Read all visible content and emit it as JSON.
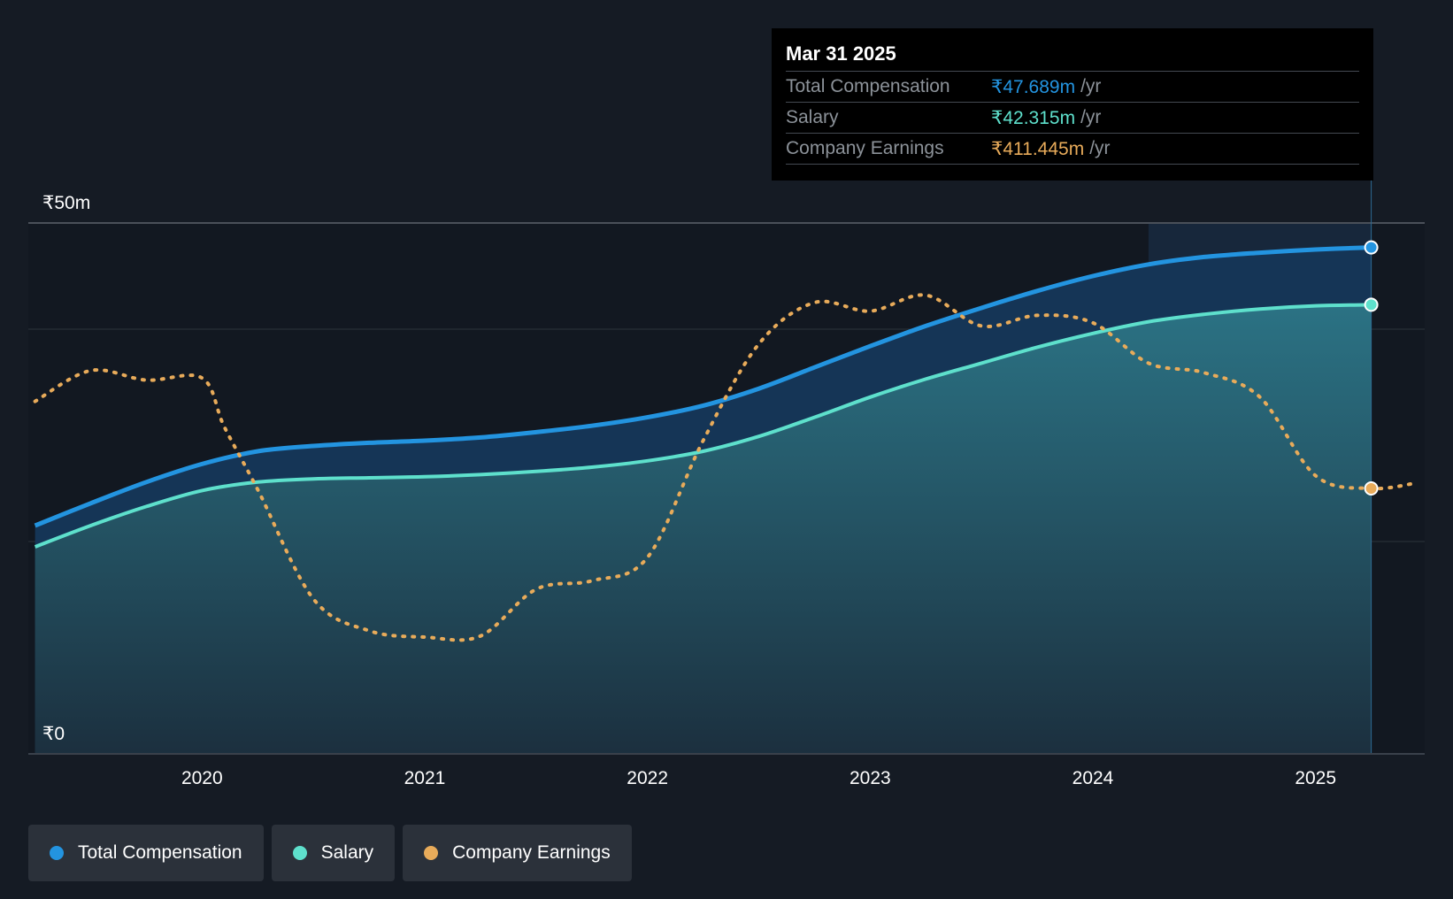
{
  "colors": {
    "background": "#151b24",
    "total_compensation": "#2394e0",
    "salary": "#5ee0cc",
    "company_earnings": "#e8ab5a"
  },
  "tooltip": {
    "date": "Mar 31 2025",
    "rows": [
      {
        "label": "Total Compensation",
        "value": "₹47.689m",
        "unit": "/yr"
      },
      {
        "label": "Salary",
        "value": "₹42.315m",
        "unit": "/yr"
      },
      {
        "label": "Company Earnings",
        "value": "₹411.445m",
        "unit": "/yr"
      }
    ]
  },
  "legend": [
    {
      "label": "Total Compensation"
    },
    {
      "label": "Salary"
    },
    {
      "label": "Company Earnings"
    }
  ],
  "chart_data": {
    "type": "area",
    "title": "",
    "xlabel": "",
    "ylabel": "",
    "ylim": [
      0,
      50
    ],
    "xlim": [
      2019.22,
      2025.49
    ],
    "y_tick_labels": [
      {
        "value": 50,
        "label": "₹50m"
      },
      {
        "value": 0,
        "label": "₹0"
      }
    ],
    "gridlines_y": [
      50,
      40,
      20
    ],
    "x_ticks": [
      2020,
      2021,
      2022,
      2023,
      2024,
      2025
    ],
    "highlight_from": 2024.25,
    "series": [
      {
        "name": "Total Compensation",
        "key": "total_compensation",
        "x": [
          2019.25,
          2019.5,
          2019.75,
          2020.0,
          2020.25,
          2020.5,
          2020.75,
          2021.0,
          2021.25,
          2021.5,
          2021.75,
          2022.0,
          2022.25,
          2022.5,
          2022.75,
          2023.0,
          2023.25,
          2023.5,
          2023.75,
          2024.0,
          2024.25,
          2024.5,
          2024.75,
          2025.0,
          2025.25
        ],
        "values": [
          21.5,
          23.6,
          25.6,
          27.3,
          28.5,
          29.0,
          29.3,
          29.5,
          29.8,
          30.3,
          30.9,
          31.7,
          32.8,
          34.4,
          36.4,
          38.4,
          40.3,
          42.0,
          43.6,
          45.0,
          46.1,
          46.8,
          47.2,
          47.5,
          47.7
        ]
      },
      {
        "name": "Salary",
        "key": "salary",
        "x": [
          2019.25,
          2019.5,
          2019.75,
          2020.0,
          2020.25,
          2020.5,
          2020.75,
          2021.0,
          2021.25,
          2021.5,
          2021.75,
          2022.0,
          2022.25,
          2022.5,
          2022.75,
          2023.0,
          2023.25,
          2023.5,
          2023.75,
          2024.0,
          2024.25,
          2024.5,
          2024.75,
          2025.0,
          2025.25
        ],
        "values": [
          19.5,
          21.5,
          23.3,
          24.8,
          25.6,
          25.9,
          26.0,
          26.1,
          26.3,
          26.6,
          27.0,
          27.6,
          28.5,
          29.9,
          31.7,
          33.6,
          35.3,
          36.8,
          38.3,
          39.6,
          40.7,
          41.4,
          41.9,
          42.2,
          42.3
        ]
      },
      {
        "name": "Company Earnings",
        "key": "company_earnings",
        "style": "dotted",
        "axis": "secondary",
        "x": [
          2019.25,
          2019.5,
          2019.75,
          2020.0,
          2020.1,
          2020.25,
          2020.5,
          2020.75,
          2021.0,
          2021.25,
          2021.5,
          2021.75,
          2022.0,
          2022.25,
          2022.5,
          2022.75,
          2023.0,
          2023.25,
          2023.5,
          2023.75,
          2024.0,
          2024.25,
          2024.5,
          2024.75,
          2025.0,
          2025.25,
          2025.45
        ],
        "values": [
          33.2,
          36.1,
          35.2,
          35.4,
          30.8,
          24.9,
          14.6,
          11.6,
          11.0,
          11.1,
          15.5,
          16.3,
          18.5,
          29.5,
          38.6,
          42.5,
          41.7,
          43.2,
          40.3,
          41.3,
          40.6,
          36.8,
          35.9,
          33.6,
          26.2,
          25.0,
          25.5
        ]
      }
    ]
  }
}
